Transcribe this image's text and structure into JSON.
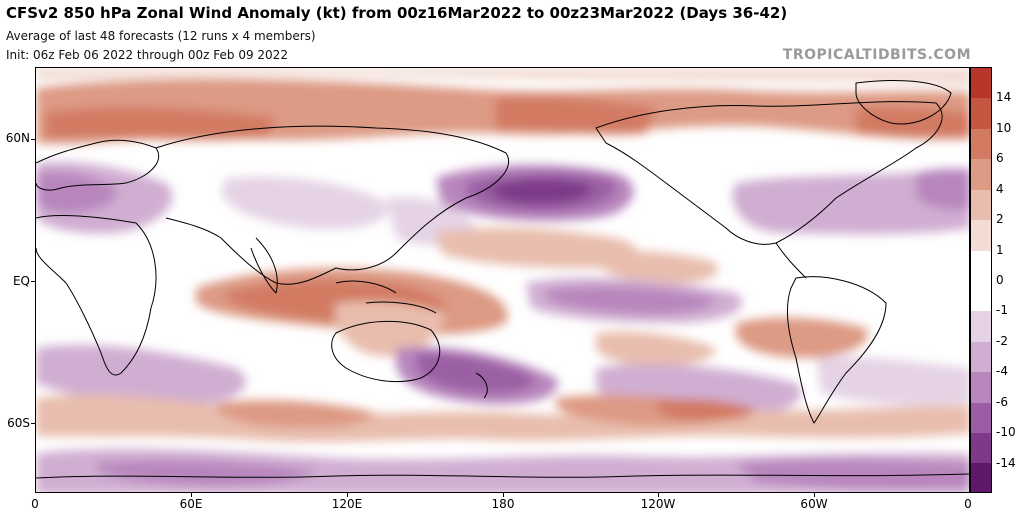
{
  "title": "CFSv2 850 hPa Zonal Wind Anomaly (kt) from 00z16Mar2022 to 00z23Mar2022 (Days 36-42)",
  "subtitle1": "Average of last 48 forecasts (12 runs x 4 members)",
  "subtitle2": "Init: 06z Feb 06 2022 through 00z Feb 09 2022",
  "brand": "TROPICALTIDBITS.COM",
  "lat_labels": [
    "60N",
    "EQ",
    "60S"
  ],
  "lon_labels": [
    "0",
    "60E",
    "120E",
    "180",
    "120W",
    "60W",
    "0"
  ],
  "colorbar": {
    "labels": [
      "14",
      "10",
      "6",
      "4",
      "2",
      "1",
      "0",
      "-1",
      "-2",
      "-4",
      "-6",
      "-10",
      "-14"
    ],
    "colors": [
      "#b7352a",
      "#c65642",
      "#d27a62",
      "#dd9a84",
      "#e8bdad",
      "#f2dcd3",
      "#ffffff",
      "#ffffff",
      "#e5d3e5",
      "#d0aed2",
      "#b886bd",
      "#9b5ea4",
      "#7d3a87",
      "#5e1a68"
    ]
  }
}
